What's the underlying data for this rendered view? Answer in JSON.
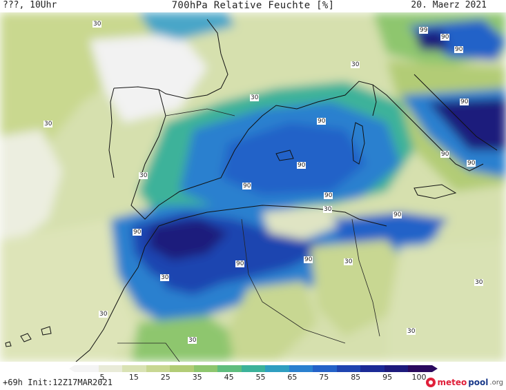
{
  "header": {
    "left": "???, 10Uhr",
    "title": "700hPa Relative Feuchte [%]",
    "date": "20. Maerz 2021"
  },
  "map": {
    "contour_labels": [
      {
        "id": "l1",
        "text": "30"
      },
      {
        "id": "l2",
        "text": "99"
      },
      {
        "id": "l3",
        "text": "90"
      },
      {
        "id": "l4",
        "text": "90"
      },
      {
        "id": "l5",
        "text": "30"
      },
      {
        "id": "l6",
        "text": "30"
      },
      {
        "id": "l7",
        "text": "90"
      },
      {
        "id": "l8",
        "text": "30"
      },
      {
        "id": "l9",
        "text": "90"
      },
      {
        "id": "l10",
        "text": "90"
      },
      {
        "id": "l11",
        "text": "30"
      },
      {
        "id": "l12",
        "text": "90"
      },
      {
        "id": "l13",
        "text": "90"
      },
      {
        "id": "l14",
        "text": "90"
      },
      {
        "id": "l15",
        "text": "90"
      },
      {
        "id": "l16",
        "text": "30"
      },
      {
        "id": "l17",
        "text": "90"
      },
      {
        "id": "l18",
        "text": "90"
      },
      {
        "id": "l19",
        "text": "30"
      },
      {
        "id": "l20",
        "text": "90"
      },
      {
        "id": "l21",
        "text": "90"
      },
      {
        "id": "l22",
        "text": "30"
      },
      {
        "id": "l23",
        "text": "30"
      },
      {
        "id": "l24",
        "text": "30"
      },
      {
        "id": "l25",
        "text": "30"
      },
      {
        "id": "l26",
        "text": "30"
      }
    ]
  },
  "legend": {
    "colors": [
      "#f4f4f4",
      "#e9ebd8",
      "#d9e2b4",
      "#c8d792",
      "#b2cc76",
      "#8ec66e",
      "#5fbd7e",
      "#3cb29a",
      "#2f9ec0",
      "#2a80cf",
      "#2462c8",
      "#1f44b0",
      "#1b2a96",
      "#1d1a7c",
      "#2a0a5e"
    ],
    "ticks": [
      "5",
      "15",
      "25",
      "35",
      "45",
      "55",
      "65",
      "75",
      "85",
      "95",
      "100"
    ],
    "init": "+69h Init:12Z17MAR2021"
  },
  "logo": {
    "part1": "meteo",
    "part2": "pool",
    "part3": ".org"
  }
}
